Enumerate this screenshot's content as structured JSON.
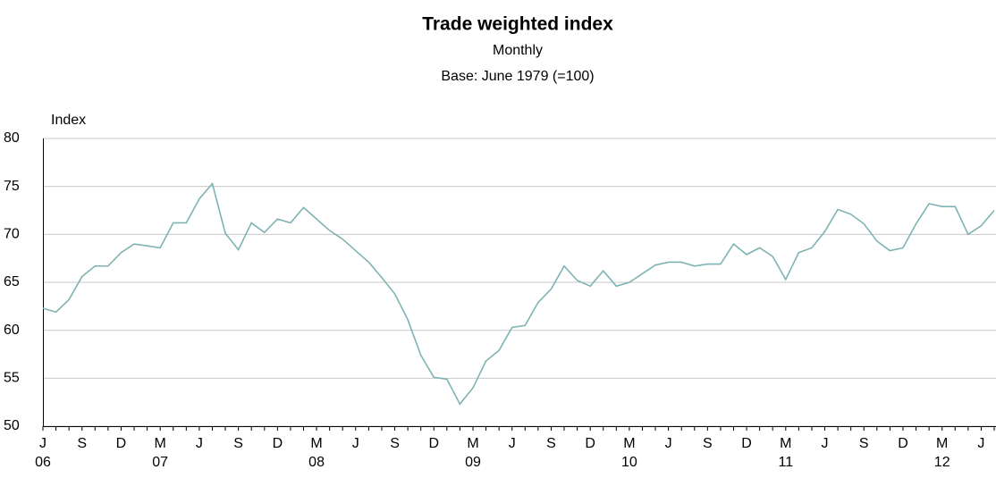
{
  "chart_data": {
    "type": "line",
    "title": "Trade weighted index",
    "subtitle": [
      "Monthly",
      "Base: June 1979 (=100)"
    ],
    "y_label": "Index",
    "categories": [
      "J",
      null,
      null,
      "S",
      null,
      null,
      "D",
      null,
      null,
      "M",
      null,
      null,
      "J",
      null,
      null,
      "S",
      null,
      null,
      "D",
      null,
      null,
      "M",
      null,
      null,
      "J",
      null,
      null,
      "S",
      null,
      null,
      "D",
      null,
      null,
      "M",
      null,
      null,
      "J",
      null,
      null,
      "S",
      null,
      null,
      "D",
      null,
      null,
      "M",
      null,
      null,
      "J",
      null,
      null,
      "S",
      null,
      null,
      "D",
      null,
      null,
      "M",
      null,
      null,
      "J",
      null,
      null,
      "S",
      null,
      null,
      "D",
      null,
      null,
      "M",
      null,
      null,
      "J",
      null
    ],
    "year_labels": [
      "06",
      null,
      null,
      null,
      null,
      null,
      null,
      null,
      null,
      "07",
      null,
      null,
      null,
      null,
      null,
      null,
      null,
      null,
      null,
      null,
      null,
      "08",
      null,
      null,
      null,
      null,
      null,
      null,
      null,
      null,
      null,
      null,
      null,
      "09",
      null,
      null,
      null,
      null,
      null,
      null,
      null,
      null,
      null,
      null,
      null,
      "10",
      null,
      null,
      null,
      null,
      null,
      null,
      null,
      null,
      null,
      null,
      null,
      "11",
      null,
      null,
      null,
      null,
      null,
      null,
      null,
      null,
      null,
      null,
      null,
      "12",
      null,
      null,
      null,
      null
    ],
    "values": [
      62.3,
      61.9,
      63.2,
      65.6,
      66.7,
      66.7,
      68.1,
      69.0,
      68.8,
      68.6,
      71.2,
      71.2,
      73.7,
      75.3,
      70.1,
      68.4,
      71.2,
      70.2,
      71.6,
      71.2,
      72.8,
      71.6,
      70.4,
      69.5,
      68.3,
      67.1,
      65.5,
      63.8,
      61.1,
      57.4,
      55.1,
      54.9,
      52.3,
      54.0,
      56.8,
      57.9,
      60.3,
      60.5,
      62.9,
      64.3,
      66.7,
      65.2,
      64.6,
      66.2,
      64.6,
      65.0,
      65.9,
      66.8,
      67.1,
      67.1,
      66.7,
      66.9,
      66.9,
      69.0,
      67.9,
      68.6,
      67.7,
      65.3,
      68.1,
      68.6,
      70.3,
      72.6,
      72.1,
      71.1,
      69.3,
      68.3,
      68.6,
      71.1,
      73.2,
      72.9,
      72.9,
      70.0,
      70.9,
      72.5
    ],
    "color": "#7fb3b3",
    "ylim": [
      50,
      80
    ],
    "yticks": [
      50,
      55,
      60,
      65,
      70,
      75,
      80
    ],
    "grid": true
  }
}
